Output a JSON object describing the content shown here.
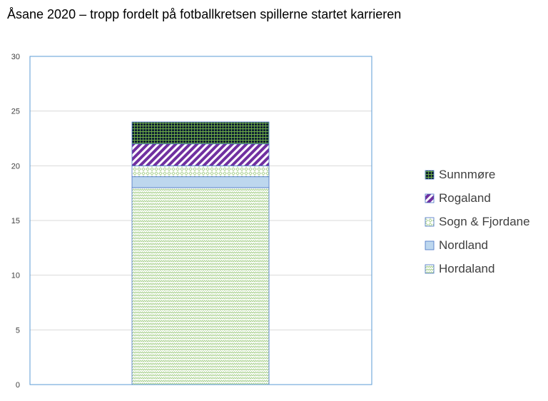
{
  "chart_data": {
    "type": "bar",
    "stacked": true,
    "title": "Åsane 2020 – tropp fordelt på fotballkretsen spillerne startet karrieren",
    "xlabel": "",
    "ylabel": "",
    "categories": [
      ""
    ],
    "ylim": [
      0,
      30
    ],
    "yticks": [
      0,
      5,
      10,
      15,
      20,
      25,
      30
    ],
    "grid": true,
    "legend_position": "right",
    "series": [
      {
        "name": "Hordaland",
        "values": [
          18
        ],
        "color": "#a9d08e",
        "pattern": "zigzag"
      },
      {
        "name": "Nordland",
        "values": [
          1
        ],
        "color": "#bdd7ee",
        "pattern": "solid"
      },
      {
        "name": "Sogn & Fjordane",
        "values": [
          1
        ],
        "color": "#a9d08e",
        "pattern": "diamond"
      },
      {
        "name": "Rogaland",
        "values": [
          2
        ],
        "color": "#7030a0",
        "pattern": "diagonal"
      },
      {
        "name": "Sunnmøre",
        "values": [
          2
        ],
        "color": "#0d2033",
        "pattern": "grid"
      }
    ],
    "legend_order": [
      "Sunnmøre",
      "Rogaland",
      "Sogn & Fjordane",
      "Nordland",
      "Hordaland"
    ],
    "colors": {
      "plot_border": "#5b9bd5",
      "bar_edge": "#4472c4",
      "gridline": "#d9d9d9"
    }
  }
}
